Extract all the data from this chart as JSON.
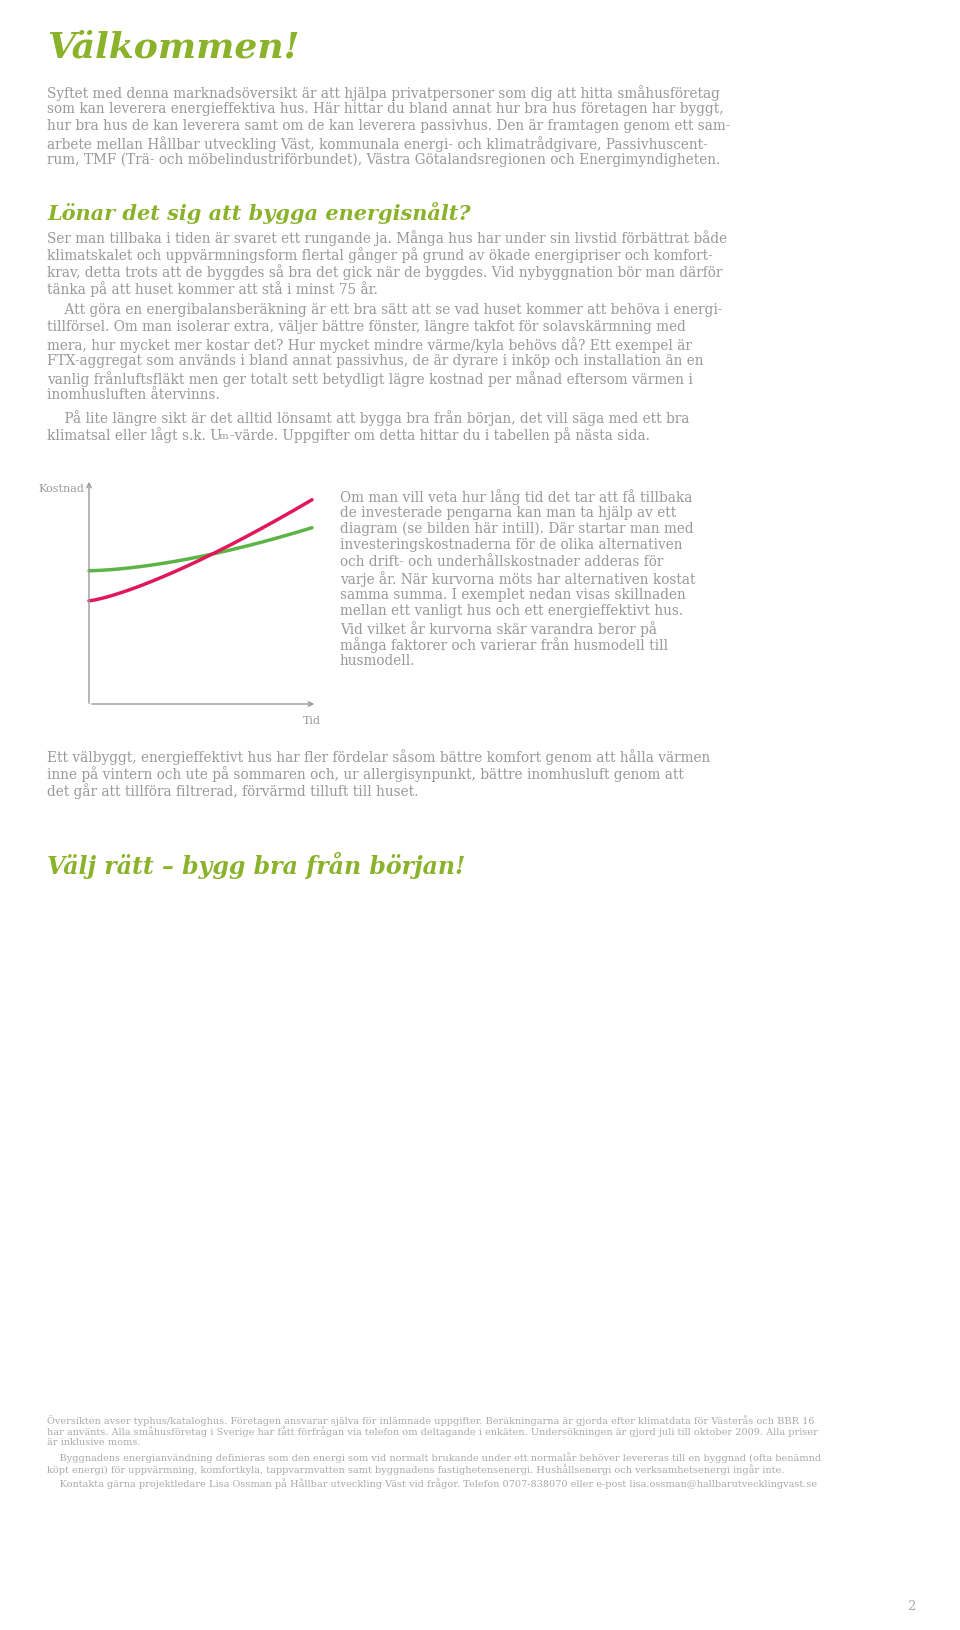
{
  "bg_color": "#ffffff",
  "page_number": "2",
  "title": "Välkommen!",
  "title_color": "#8ab22a",
  "title_fontsize": 26,
  "body_color": "#999999",
  "body_fontsize": 9.8,
  "section2_title": "Lönar det sig att bygga energisnålt?",
  "section2_color": "#8ab22a",
  "section2_fontsize": 15,
  "section3_title": "Välj rätt – bygg bra från början!",
  "section3_color": "#8ab22a",
  "section3_fontsize": 17,
  "footnote_fontsize": 7.0,
  "graph_xlabel": "Tid",
  "graph_ylabel": "Kostnad",
  "green_color": "#5db446",
  "red_color": "#e0185a",
  "axis_color": "#999999"
}
